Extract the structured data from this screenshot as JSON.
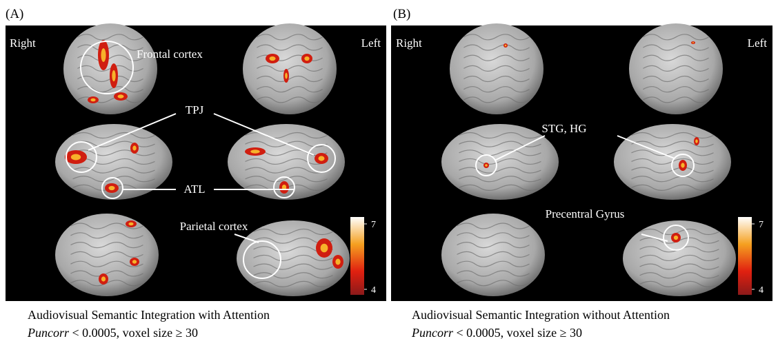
{
  "panels": [
    {
      "label": "(A)",
      "right_label": "Right",
      "left_label": "Left",
      "annotations": [
        "Frontal cortex",
        "TPJ",
        "ATL",
        "Parietal cortex"
      ],
      "colorbar_ticks": [
        4,
        7
      ],
      "caption": "Audiovisual Semantic Integration with Attention",
      "stat_symbol": "Puncorr",
      "stat_text": "< 0.0005, voxel size ≥ 30"
    },
    {
      "label": "(B)",
      "right_label": "Right",
      "left_label": "Left",
      "annotations": [
        "STG, HG",
        "Precentral Gyrus"
      ],
      "colorbar_ticks": [
        4,
        7
      ],
      "caption": "Audiovisual Semantic Integration without Attention",
      "stat_symbol": "Puncorr",
      "stat_text": "< 0.0005, voxel size ≥ 30"
    }
  ]
}
